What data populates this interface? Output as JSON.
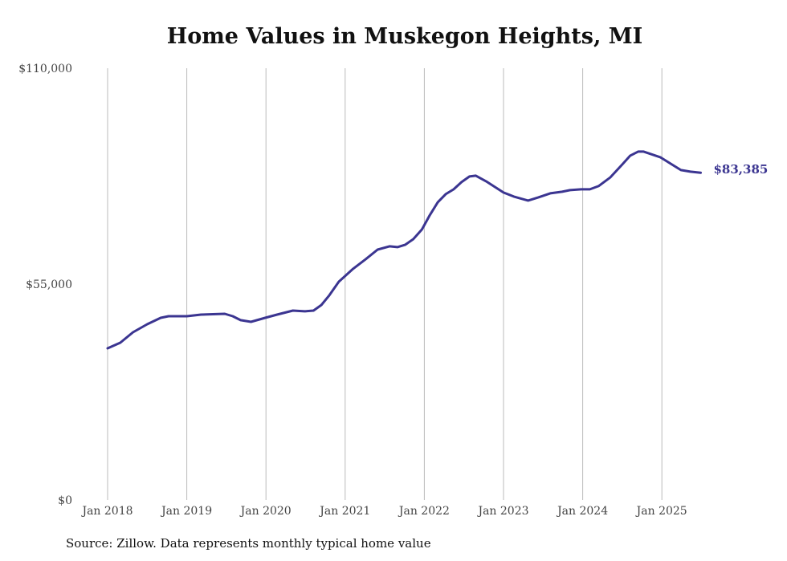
{
  "chart_data": {
    "type": "line",
    "title": "Home Values in Muskegon Heights, MI",
    "xlabel": "",
    "ylabel": "",
    "ylim": [
      0,
      110000
    ],
    "xlim": [
      2018.0,
      2025.5
    ],
    "grid": "vertical",
    "y_ticks": [
      {
        "value": 0,
        "label": "$0"
      },
      {
        "value": 55000,
        "label": "$55,000"
      },
      {
        "value": 110000,
        "label": "$110,000"
      }
    ],
    "x_ticks": [
      {
        "value": 2018,
        "label": "Jan 2018"
      },
      {
        "value": 2019,
        "label": "Jan 2019"
      },
      {
        "value": 2020,
        "label": "Jan 2020"
      },
      {
        "value": 2021,
        "label": "Jan 2021"
      },
      {
        "value": 2022,
        "label": "Jan 2022"
      },
      {
        "value": 2023,
        "label": "Jan 2023"
      },
      {
        "value": 2024,
        "label": "Jan 2024"
      },
      {
        "value": 2025,
        "label": "Jan 2025"
      }
    ],
    "series": [
      {
        "name": "Typical home value",
        "color": "#3b3591",
        "x": [
          2018.0,
          2018.16,
          2018.32,
          2018.5,
          2018.67,
          2018.77,
          2019.0,
          2019.18,
          2019.48,
          2019.58,
          2019.68,
          2019.81,
          2019.99,
          2020.14,
          2020.34,
          2020.49,
          2020.6,
          2020.7,
          2020.8,
          2020.92,
          2021.0,
          2021.1,
          2021.26,
          2021.41,
          2021.56,
          2021.66,
          2021.76,
          2021.86,
          2021.97,
          2022.07,
          2022.17,
          2022.27,
          2022.37,
          2022.47,
          2022.57,
          2022.65,
          2022.78,
          2023.0,
          2023.13,
          2023.31,
          2023.44,
          2023.59,
          2023.74,
          2023.84,
          2023.98,
          2024.09,
          2024.2,
          2024.35,
          2024.5,
          2024.6,
          2024.7,
          2024.77,
          2024.86,
          2024.98,
          2025.11,
          2025.24,
          2025.36,
          2025.49
        ],
        "values": [
          38650,
          40080,
          42740,
          44780,
          46420,
          46830,
          46830,
          47240,
          47440,
          46830,
          45810,
          45400,
          46420,
          47240,
          48260,
          48060,
          48260,
          49690,
          52150,
          55620,
          57060,
          58900,
          61350,
          63800,
          64620,
          64420,
          65030,
          66460,
          68920,
          72600,
          75870,
          77910,
          79140,
          80980,
          82410,
          82620,
          81190,
          78330,
          77300,
          76280,
          77100,
          78120,
          78530,
          78940,
          79140,
          79140,
          79960,
          82210,
          85480,
          87730,
          88750,
          88750,
          88140,
          87320,
          85690,
          84050,
          83640,
          83385
        ]
      }
    ],
    "annotations": [
      {
        "label": "$83,385"
      }
    ],
    "source": "Source: Zillow. Data represents monthly typical home value"
  }
}
